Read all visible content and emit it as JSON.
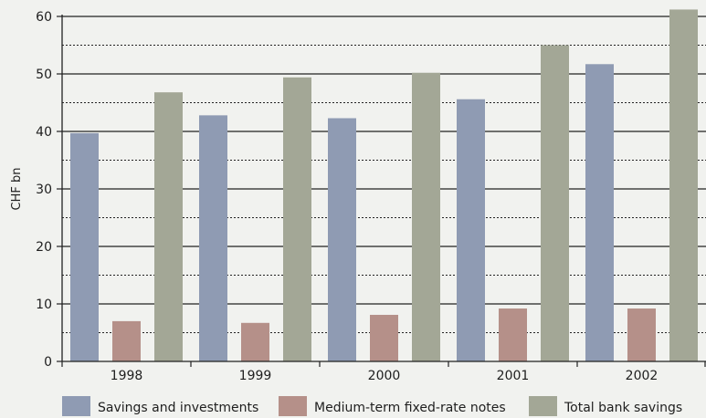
{
  "chart_data": {
    "type": "bar",
    "title": "",
    "xlabel": "",
    "ylabel": "CHF bn",
    "ylim": [
      0,
      60
    ],
    "yticks": [
      0,
      10,
      20,
      30,
      40,
      50,
      60
    ],
    "grid": "solid major lines every 10, dotted minor lines at the 5s",
    "legend_position": "bottom",
    "categories": [
      "1998",
      "1999",
      "2000",
      "2001",
      "2002"
    ],
    "series": [
      {
        "name": "Savings and investments",
        "color": "#8f9bb3",
        "values": [
          39.7,
          42.8,
          42.3,
          45.6,
          51.7
        ]
      },
      {
        "name": "Medium-term fixed-rate notes",
        "color": "#b59089",
        "values": [
          7.0,
          6.7,
          8.1,
          9.2,
          9.2
        ]
      },
      {
        "name": "Total bank savings",
        "color": "#a3a796",
        "values": [
          46.8,
          49.4,
          50.2,
          55.0,
          61.2
        ]
      }
    ]
  }
}
